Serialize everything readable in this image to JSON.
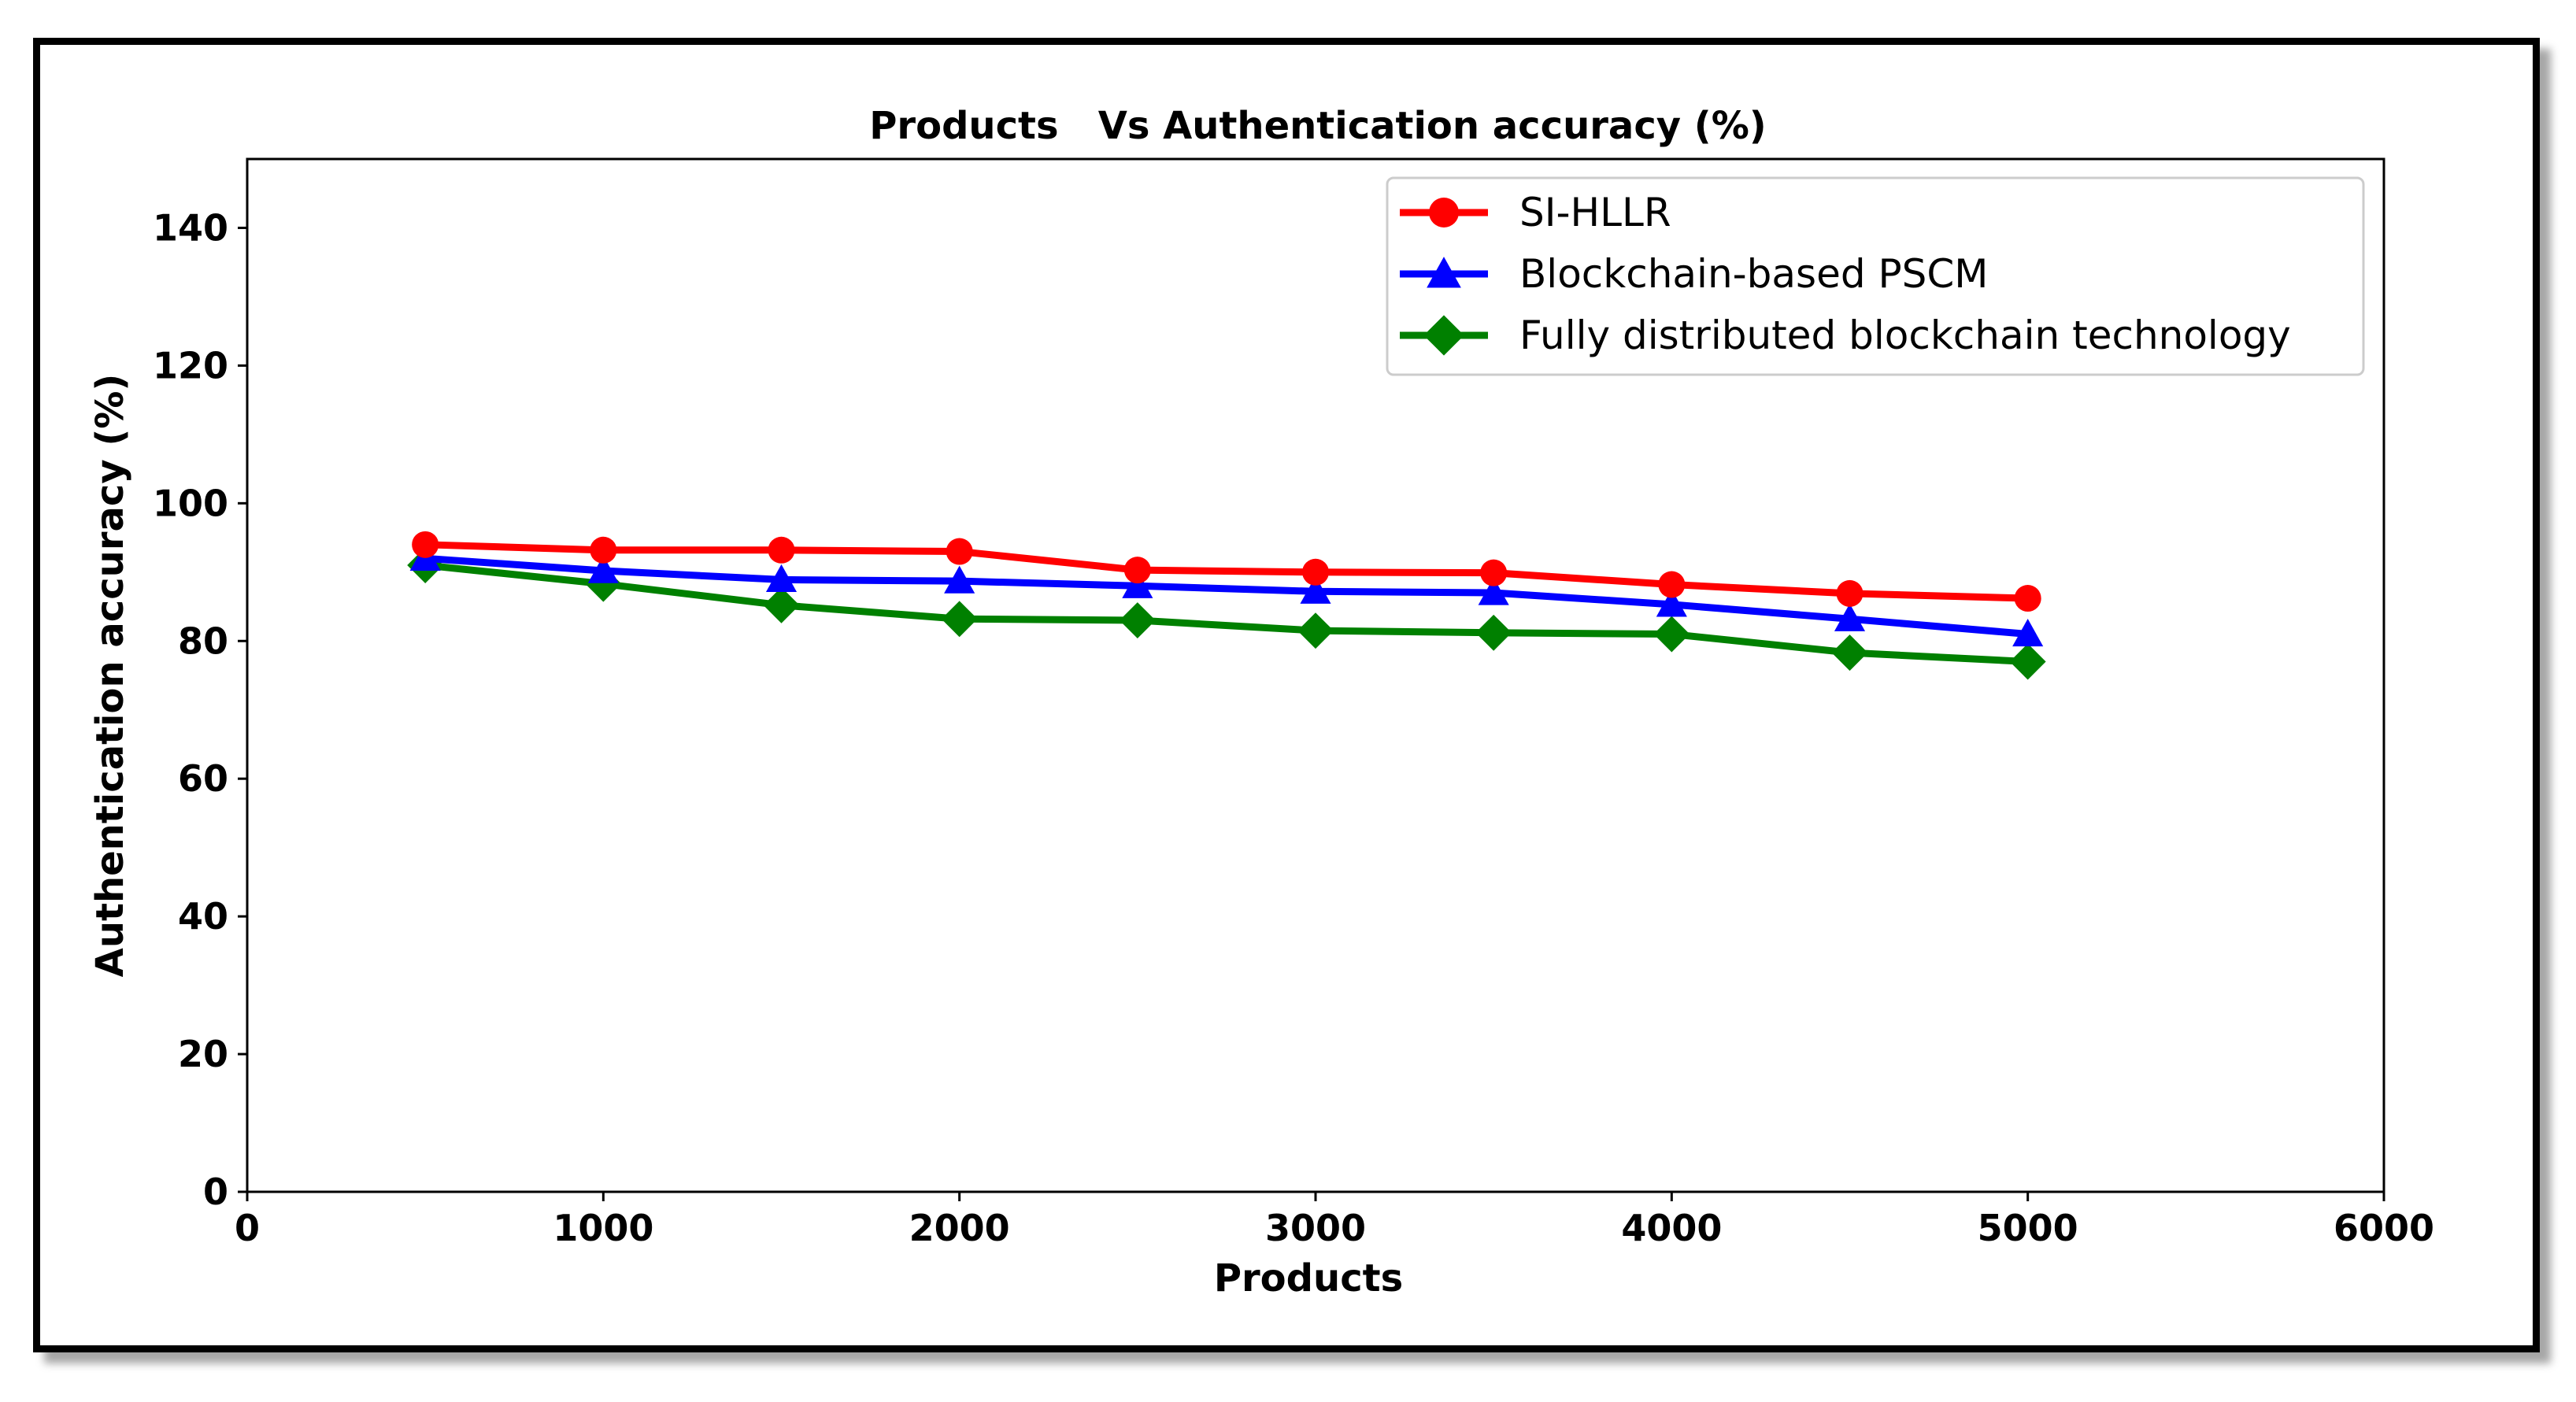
{
  "chart_data": {
    "type": "line",
    "title": "Products   Vs Authentication accuracy (%)",
    "xlabel": "Products",
    "ylabel": "Authentication accuracy (%)",
    "xlim": [
      0,
      6000
    ],
    "ylim": [
      0,
      150
    ],
    "xticks": [
      0,
      1000,
      2000,
      3000,
      4000,
      5000,
      6000
    ],
    "yticks": [
      0,
      20,
      40,
      60,
      80,
      100,
      120,
      140
    ],
    "x": [
      500,
      1000,
      1500,
      2000,
      2500,
      3000,
      3500,
      4000,
      4500,
      5000
    ],
    "grid": false,
    "legend_position": "top-right",
    "series": [
      {
        "name": "SI-HLLR",
        "color": "#ff0000",
        "marker": "circle",
        "values": [
          94,
          93.2,
          93.2,
          93,
          90.3,
          90,
          89.9,
          88.2,
          86.9,
          86.2
        ]
      },
      {
        "name": "Blockchain-based PSCM",
        "color": "#0000ff",
        "marker": "triangle",
        "values": [
          92,
          90.2,
          88.9,
          88.7,
          88,
          87.2,
          87,
          85.3,
          83.2,
          81
        ]
      },
      {
        "name": "Fully distributed blockchain technology",
        "color": "#008000",
        "marker": "diamond",
        "values": [
          91,
          88.3,
          85.2,
          83.2,
          83,
          81.5,
          81.2,
          81,
          78.3,
          77
        ]
      }
    ]
  }
}
